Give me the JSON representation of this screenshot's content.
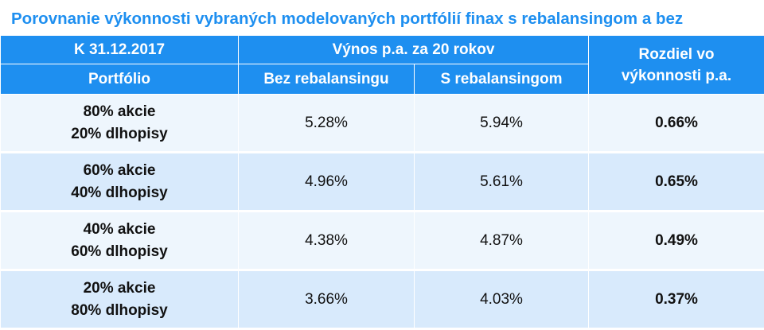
{
  "title": "Porovnanie výkonnosti vybraných modelovaných portfólií finax s rebalansingom a bez",
  "colors": {
    "title": "#1e8ff0",
    "header_bg": "#1e8ff0",
    "header_text": "#ffffff",
    "row_light": "#eef6fd",
    "row_dark": "#d8eafc"
  },
  "header": {
    "date_label": "K 31.12.2017",
    "returns_group_label": "Výnos p.a. za 20 rokov",
    "portfolio_label": "Portfólio",
    "without_rebalancing_label": "Bez rebalansingu",
    "with_rebalancing_label": "S rebalansingom",
    "difference_label_line1": "Rozdiel vo",
    "difference_label_line2": "výkonnosti p.a."
  },
  "chart_data": {
    "type": "table",
    "title": "Porovnanie výkonnosti vybraných modelovaných portfólií finax s rebalansingom a bez",
    "columns": [
      "Portfólio",
      "Bez rebalansingu",
      "S rebalansingom",
      "Rozdiel vo výkonnosti p.a."
    ],
    "rows": [
      {
        "portfolio_line1": "80% akcie",
        "portfolio_line2": "20% dlhopisy",
        "without": "5.28%",
        "with": "5.94%",
        "difference": "0.66%"
      },
      {
        "portfolio_line1": "60% akcie",
        "portfolio_line2": "40% dlhopisy",
        "without": "4.96%",
        "with": "5.61%",
        "difference": "0.65%"
      },
      {
        "portfolio_line1": "40% akcie",
        "portfolio_line2": "60% dlhopisy",
        "without": "4.38%",
        "with": "4.87%",
        "difference": "0.49%"
      },
      {
        "portfolio_line1": "20% akcie",
        "portfolio_line2": "80% dlhopisy",
        "without": "3.66%",
        "with": "4.03%",
        "difference": "0.37%"
      }
    ]
  }
}
